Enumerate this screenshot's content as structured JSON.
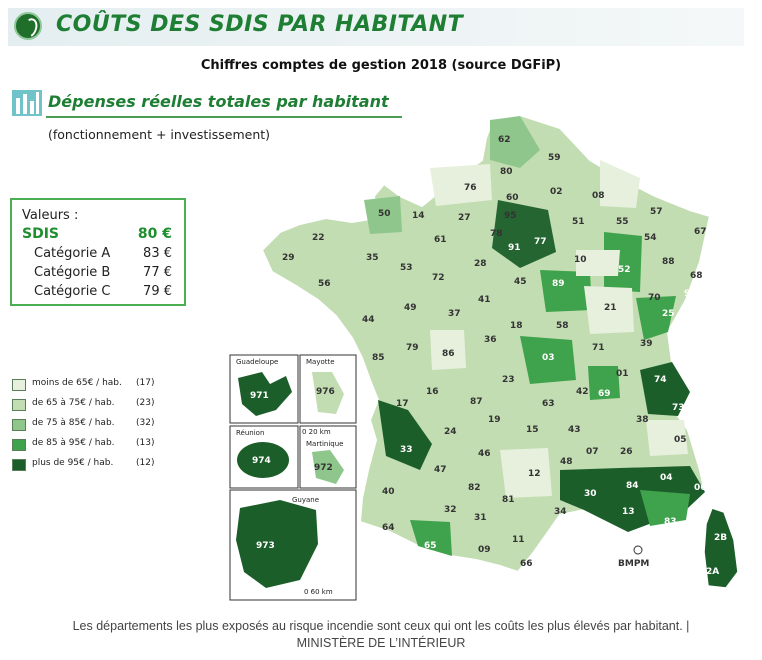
{
  "header": {
    "title": "COÛTS DES SDIS PAR HABITANT",
    "subtitle": "Chiffres comptes de gestion 2018 (source DGFiP)"
  },
  "section": {
    "title": "Dépenses réelles totales par habitant",
    "subtitle": "(fonctionnement + investissement)"
  },
  "values_box": {
    "heading": "Valeurs :",
    "rows": [
      {
        "label": "SDIS",
        "value": "80 €"
      },
      {
        "label": "Catégorie A",
        "value": "83 €"
      },
      {
        "label": "Catégorie B",
        "value": "77 €"
      },
      {
        "label": "Catégorie C",
        "value": "79 €"
      }
    ]
  },
  "legend": [
    {
      "label": "moins de 65€ / hab.",
      "count": "(17)",
      "color": "#e6f0dc"
    },
    {
      "label": "de 65 à 75€ / hab.",
      "count": "(23)",
      "color": "#c3ddb3"
    },
    {
      "label": "de 75 à 85€ / hab.",
      "count": "(32)",
      "color": "#8fc68c"
    },
    {
      "label": "de 85 à 95€ / hab.",
      "count": "(13)",
      "color": "#3fa24c"
    },
    {
      "label": "plus de 95€ / hab.",
      "count": "(12)",
      "color": "#1c5e2a"
    }
  ],
  "insets": {
    "guadeloupe": {
      "label": "Guadeloupe",
      "code": "971"
    },
    "mayotte": {
      "label": "Mayotte",
      "code": "976"
    },
    "reunion": {
      "label": "Réunion",
      "code": "974"
    },
    "martinique": {
      "label": "Martinique",
      "code": "972"
    },
    "guyane": {
      "label": "Guyane",
      "code": "973"
    },
    "scale_small": "0   20 km",
    "scale_large": "0   60 km"
  },
  "map_labels": {
    "bmpm": "BMPM"
  },
  "departments": [
    {
      "code": "62",
      "cls": 2
    },
    {
      "code": "59",
      "cls": 1
    },
    {
      "code": "80",
      "cls": 2
    },
    {
      "code": "02",
      "cls": 1
    },
    {
      "code": "08",
      "cls": 0
    },
    {
      "code": "76",
      "cls": 0
    },
    {
      "code": "60",
      "cls": 1
    },
    {
      "code": "95",
      "cls": 1
    },
    {
      "code": "14",
      "cls": 0
    },
    {
      "code": "27",
      "cls": 0
    },
    {
      "code": "50",
      "cls": 2
    },
    {
      "code": "78",
      "cls": 2
    },
    {
      "code": "77",
      "cls": 4
    },
    {
      "code": "91",
      "cls": 3
    },
    {
      "code": "51",
      "cls": 1
    },
    {
      "code": "55",
      "cls": 2
    },
    {
      "code": "57",
      "cls": 0
    },
    {
      "code": "54",
      "cls": 2
    },
    {
      "code": "67",
      "cls": 0
    },
    {
      "code": "22",
      "cls": 1
    },
    {
      "code": "61",
      "cls": 1
    },
    {
      "code": "29",
      "cls": 1
    },
    {
      "code": "35",
      "cls": 1
    },
    {
      "code": "53",
      "cls": 1
    },
    {
      "code": "72",
      "cls": 0
    },
    {
      "code": "28",
      "cls": 2
    },
    {
      "code": "45",
      "cls": 2
    },
    {
      "code": "10",
      "cls": 0
    },
    {
      "code": "52",
      "cls": 3
    },
    {
      "code": "88",
      "cls": 2
    },
    {
      "code": "68",
      "cls": 1
    },
    {
      "code": "56",
      "cls": 1
    },
    {
      "code": "49",
      "cls": 2
    },
    {
      "code": "41",
      "cls": 2
    },
    {
      "code": "89",
      "cls": 3
    },
    {
      "code": "21",
      "cls": 0
    },
    {
      "code": "70",
      "cls": 0
    },
    {
      "code": "90",
      "cls": 3
    },
    {
      "code": "44",
      "cls": 1
    },
    {
      "code": "37",
      "cls": 1
    },
    {
      "code": "18",
      "cls": 1
    },
    {
      "code": "58",
      "cls": 2
    },
    {
      "code": "25",
      "cls": 3
    },
    {
      "code": "85",
      "cls": 1
    },
    {
      "code": "79",
      "cls": 1
    },
    {
      "code": "86",
      "cls": 0
    },
    {
      "code": "36",
      "cls": 1
    },
    {
      "code": "71",
      "cls": 1
    },
    {
      "code": "39",
      "cls": 0
    },
    {
      "code": "03",
      "cls": 3
    },
    {
      "code": "17",
      "cls": 1
    },
    {
      "code": "16",
      "cls": 2
    },
    {
      "code": "87",
      "cls": 0
    },
    {
      "code": "23",
      "cls": 2
    },
    {
      "code": "01",
      "cls": 2
    },
    {
      "code": "74",
      "cls": 3
    },
    {
      "code": "69",
      "cls": 3
    },
    {
      "code": "42",
      "cls": 2
    },
    {
      "code": "63",
      "cls": 2
    },
    {
      "code": "73",
      "cls": 4
    },
    {
      "code": "38",
      "cls": 1
    },
    {
      "code": "19",
      "cls": 2
    },
    {
      "code": "24",
      "cls": 2
    },
    {
      "code": "15",
      "cls": 2
    },
    {
      "code": "43",
      "cls": 1
    },
    {
      "code": "33",
      "cls": 4
    },
    {
      "code": "05",
      "cls": 0
    },
    {
      "code": "46",
      "cls": 2
    },
    {
      "code": "48",
      "cls": 2
    },
    {
      "code": "07",
      "cls": 2
    },
    {
      "code": "26",
      "cls": 1
    },
    {
      "code": "47",
      "cls": 2
    },
    {
      "code": "12",
      "cls": 0
    },
    {
      "code": "40",
      "cls": 1
    },
    {
      "code": "82",
      "cls": 2
    },
    {
      "code": "81",
      "cls": 1
    },
    {
      "code": "30",
      "cls": 4
    },
    {
      "code": "84",
      "cls": 4
    },
    {
      "code": "04",
      "cls": 4
    },
    {
      "code": "06",
      "cls": 4
    },
    {
      "code": "32",
      "cls": 2
    },
    {
      "code": "34",
      "cls": 2
    },
    {
      "code": "13",
      "cls": 4
    },
    {
      "code": "83",
      "cls": 3
    },
    {
      "code": "64",
      "cls": 2
    },
    {
      "code": "31",
      "cls": 1
    },
    {
      "code": "11",
      "cls": 1
    },
    {
      "code": "65",
      "cls": 3
    },
    {
      "code": "09",
      "cls": 0
    },
    {
      "code": "66",
      "cls": 2
    },
    {
      "code": "2B",
      "cls": 4
    },
    {
      "code": "2A",
      "cls": 4
    }
  ],
  "caption": {
    "line1": "Les départements les plus exposés au risque incendie sont ceux qui ont les coûts les plus élevés par habitant. |",
    "line2": "MINISTÈRE DE L’INTÉRIEUR"
  }
}
